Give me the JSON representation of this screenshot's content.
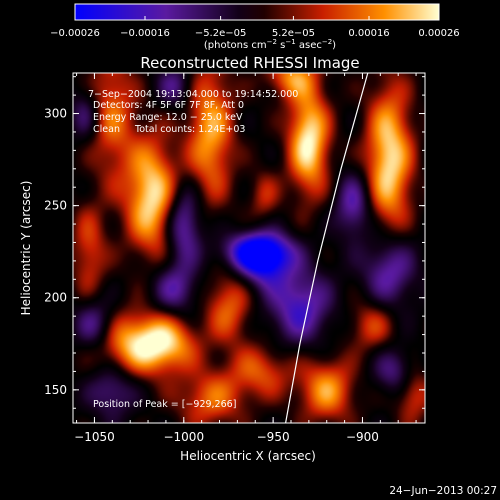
{
  "chart_data": {
    "type": "heatmap",
    "title": "Reconstructed RHESSI Image",
    "xlabel": "Heliocentric X (arcsec)",
    "ylabel": "Heliocentric Y (arcsec)",
    "xlim": [
      -1062,
      -865
    ],
    "ylim": [
      132,
      322
    ],
    "xticks": [
      -1050,
      -1000,
      -950,
      -900
    ],
    "xtick_labels": [
      "−1050",
      "−1000",
      "−950",
      "−900"
    ],
    "yticks": [
      150,
      200,
      250,
      300
    ],
    "ytick_labels": [
      "150",
      "200",
      "250",
      "300"
    ],
    "colorbar": {
      "range": [
        -0.00026,
        0.00026
      ],
      "ticks": [
        -0.00026,
        -0.00016,
        -5.2e-05,
        5.2e-05,
        0.00016,
        0.00026
      ],
      "tick_labels": [
        "−0.00026",
        "−0.00016",
        "−5.2e−05",
        "5.2e−05",
        "0.00016",
        "0.00026"
      ],
      "units_parts": [
        "(photons cm",
        "−2",
        " s",
        "−1",
        " asec",
        "−2",
        ")"
      ]
    },
    "annotations": [
      "7−Sep−2004 19:13:04.000 to 19:14:52.000",
      "Detectors: 4F 5F 6F 7F 8F, Att 0",
      "Energy Range: 12.0 − 25.0 keV",
      "Clean     Total counts: 1.24E+03"
    ],
    "peak_label": "Position of Peak = [−929,266]",
    "peak": [
      -929,
      266
    ],
    "limb_curve": [
      [
        -943,
        132
      ],
      [
        -935,
        175
      ],
      [
        -925,
        220
      ],
      [
        -912,
        270
      ],
      [
        -897,
        322
      ]
    ],
    "blobs": [
      {
        "x": -1040,
        "y": 300,
        "a": 0.55,
        "sx": 9,
        "sy": 26
      },
      {
        "x": -1018,
        "y": 255,
        "a": 0.95,
        "sx": 10,
        "sy": 22
      },
      {
        "x": -1028,
        "y": 175,
        "a": 0.75,
        "sx": 16,
        "sy": 12
      },
      {
        "x": -1010,
        "y": 175,
        "a": 0.65,
        "sx": 12,
        "sy": 10
      },
      {
        "x": -1053,
        "y": 225,
        "a": 0.45,
        "sx": 7,
        "sy": 18
      },
      {
        "x": -985,
        "y": 290,
        "a": 0.75,
        "sx": 9,
        "sy": 26
      },
      {
        "x": -975,
        "y": 195,
        "a": 0.55,
        "sx": 9,
        "sy": 14
      },
      {
        "x": -985,
        "y": 145,
        "a": 0.55,
        "sx": 13,
        "sy": 11
      },
      {
        "x": -957,
        "y": 160,
        "a": 0.5,
        "sx": 12,
        "sy": 10
      },
      {
        "x": -955,
        "y": 255,
        "a": 0.35,
        "sx": 6,
        "sy": 10
      },
      {
        "x": -930,
        "y": 285,
        "a": 1.0,
        "sx": 8,
        "sy": 20
      },
      {
        "x": -920,
        "y": 150,
        "a": 0.7,
        "sx": 11,
        "sy": 12
      },
      {
        "x": -895,
        "y": 185,
        "a": 0.45,
        "sx": 9,
        "sy": 10
      },
      {
        "x": -885,
        "y": 275,
        "a": 0.95,
        "sx": 9,
        "sy": 28
      },
      {
        "x": -872,
        "y": 150,
        "a": 0.55,
        "sx": 7,
        "sy": 12
      },
      {
        "x": -940,
        "y": 320,
        "a": 0.6,
        "sx": 10,
        "sy": 8
      },
      {
        "x": -1000,
        "y": 240,
        "a": -0.7,
        "sx": 7,
        "sy": 14
      },
      {
        "x": -960,
        "y": 225,
        "a": -0.8,
        "sx": 14,
        "sy": 7
      },
      {
        "x": -955,
        "y": 220,
        "a": -0.85,
        "sx": 10,
        "sy": 10
      },
      {
        "x": -935,
        "y": 195,
        "a": -0.7,
        "sx": 12,
        "sy": 14
      },
      {
        "x": -885,
        "y": 215,
        "a": -0.65,
        "sx": 10,
        "sy": 14
      },
      {
        "x": -1050,
        "y": 185,
        "a": -0.6,
        "sx": 8,
        "sy": 10
      },
      {
        "x": -1040,
        "y": 150,
        "a": -0.5,
        "sx": 9,
        "sy": 10
      },
      {
        "x": -1005,
        "y": 205,
        "a": -0.55,
        "sx": 9,
        "sy": 10
      },
      {
        "x": -880,
        "y": 160,
        "a": -0.55,
        "sx": 9,
        "sy": 9
      },
      {
        "x": -905,
        "y": 250,
        "a": -0.6,
        "sx": 7,
        "sy": 12
      },
      {
        "x": -1055,
        "y": 300,
        "a": -0.4,
        "sx": 6,
        "sy": 10
      },
      {
        "x": -1005,
        "y": 315,
        "a": -0.45,
        "sx": 7,
        "sy": 8
      }
    ]
  },
  "footer": {
    "date": "24−Jun−2013 00:27"
  }
}
